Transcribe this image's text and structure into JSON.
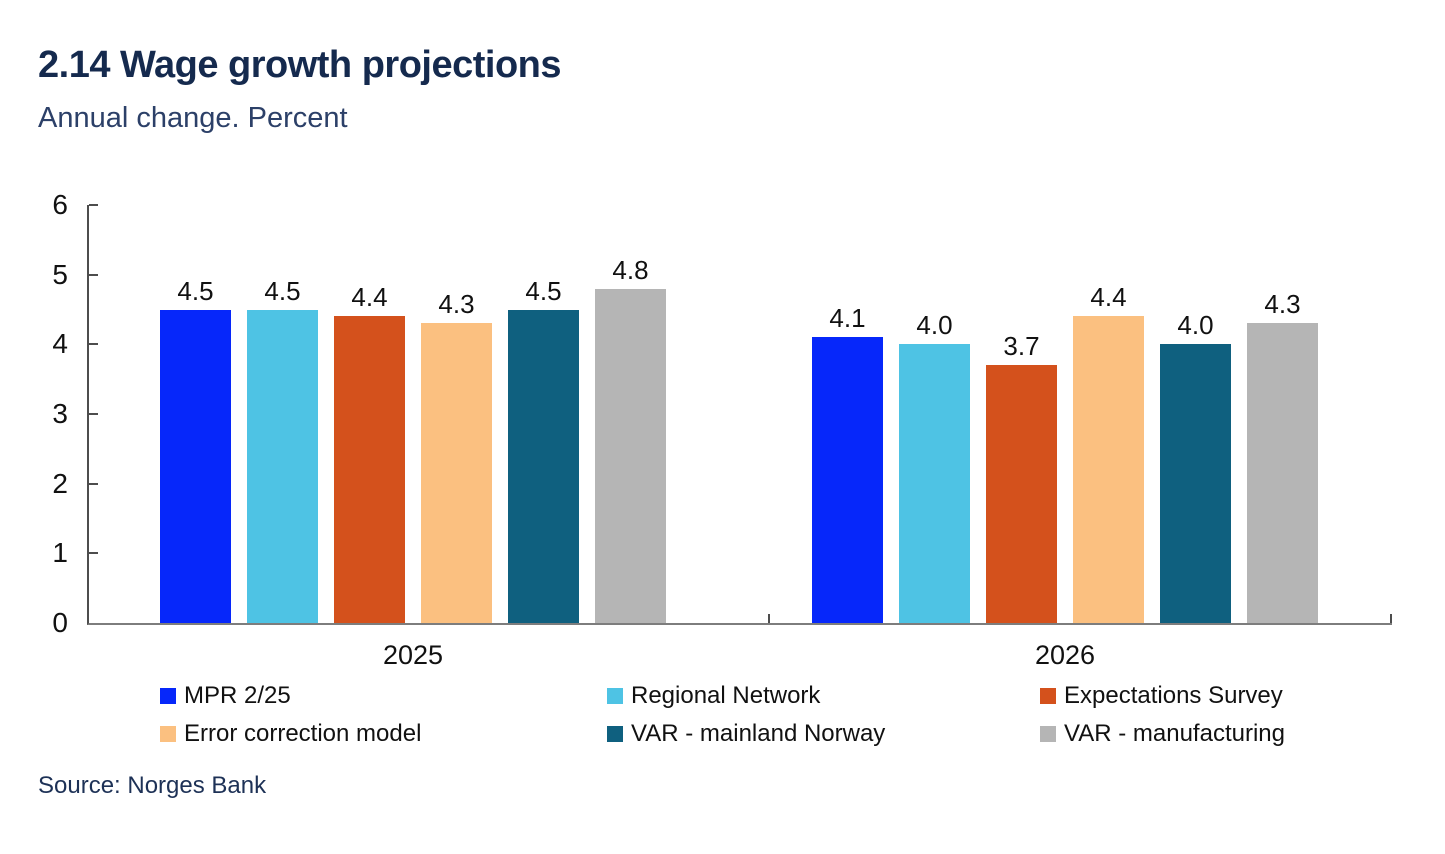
{
  "header": {
    "title": "2.14 Wage growth projections",
    "subtitle": "Annual change. Percent"
  },
  "source": {
    "label": "Source: Norges Bank"
  },
  "chart_data": {
    "type": "bar",
    "title": "2.14 Wage growth projections",
    "subtitle": "Annual change. Percent",
    "categories": [
      "2025",
      "2026"
    ],
    "series": [
      {
        "name": "MPR 2/25",
        "color": "#0627fa",
        "values": [
          4.5,
          4.1
        ]
      },
      {
        "name": "Regional Network",
        "color": "#4ec3e4",
        "values": [
          4.5,
          4.0
        ]
      },
      {
        "name": "Expectations Survey",
        "color": "#d4511c",
        "values": [
          4.4,
          3.7
        ]
      },
      {
        "name": "Error correction model",
        "color": "#fbc080",
        "values": [
          4.3,
          4.4
        ]
      },
      {
        "name": "VAR - mainland Norway",
        "color": "#0f607f",
        "values": [
          4.5,
          4.0
        ]
      },
      {
        "name": "VAR - manufacturing",
        "color": "#b5b5b5",
        "values": [
          4.8,
          4.3
        ]
      }
    ],
    "ylim": [
      0,
      6
    ],
    "yticks": [
      0,
      1,
      2,
      3,
      4,
      5,
      6
    ],
    "grid": false,
    "value_labels": true,
    "value_label_decimals": 1,
    "legend_position": "bottom",
    "axis_color": "#4d4d4d",
    "text_color": "#111111"
  }
}
